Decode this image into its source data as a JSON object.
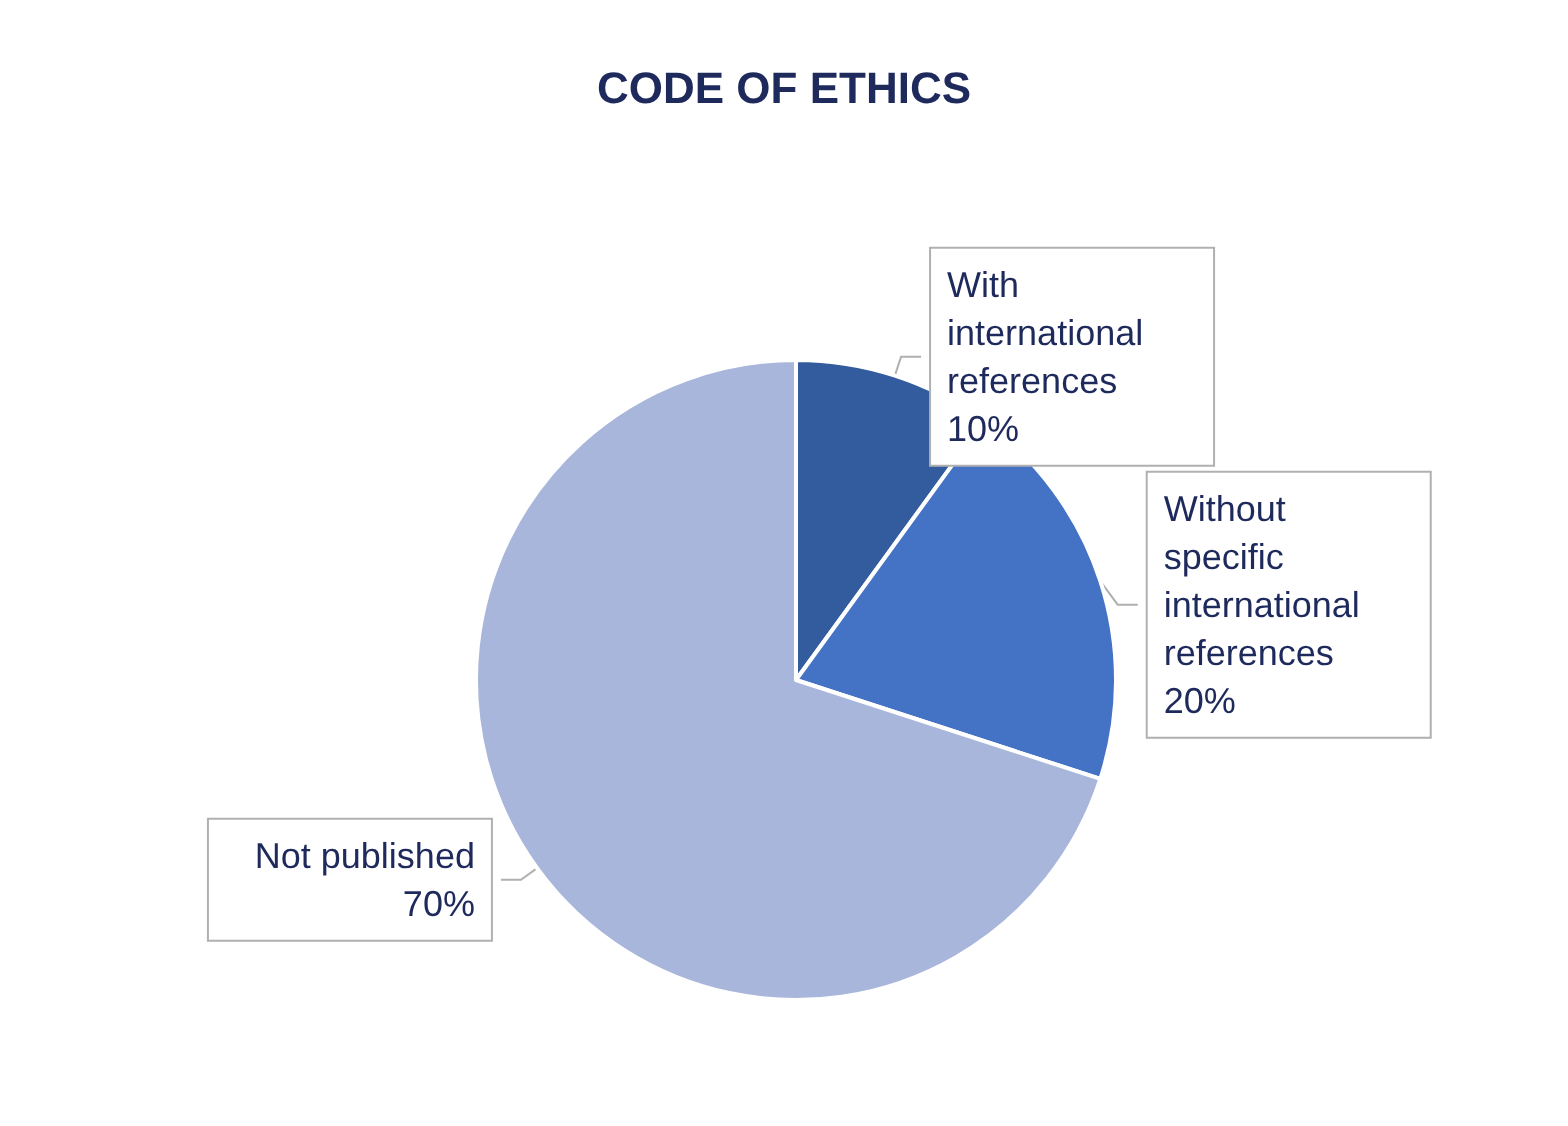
{
  "chart_data": {
    "type": "pie",
    "title": "CODE OF ETHICS",
    "categories": [
      "With international references",
      "Without specific international references",
      "Not published"
    ],
    "values": [
      10,
      20,
      70
    ],
    "colors": [
      "#335c9f",
      "#4472c4",
      "#a9b6db"
    ],
    "value_labels": [
      "10%",
      "20%",
      "70%"
    ],
    "legend": false
  }
}
